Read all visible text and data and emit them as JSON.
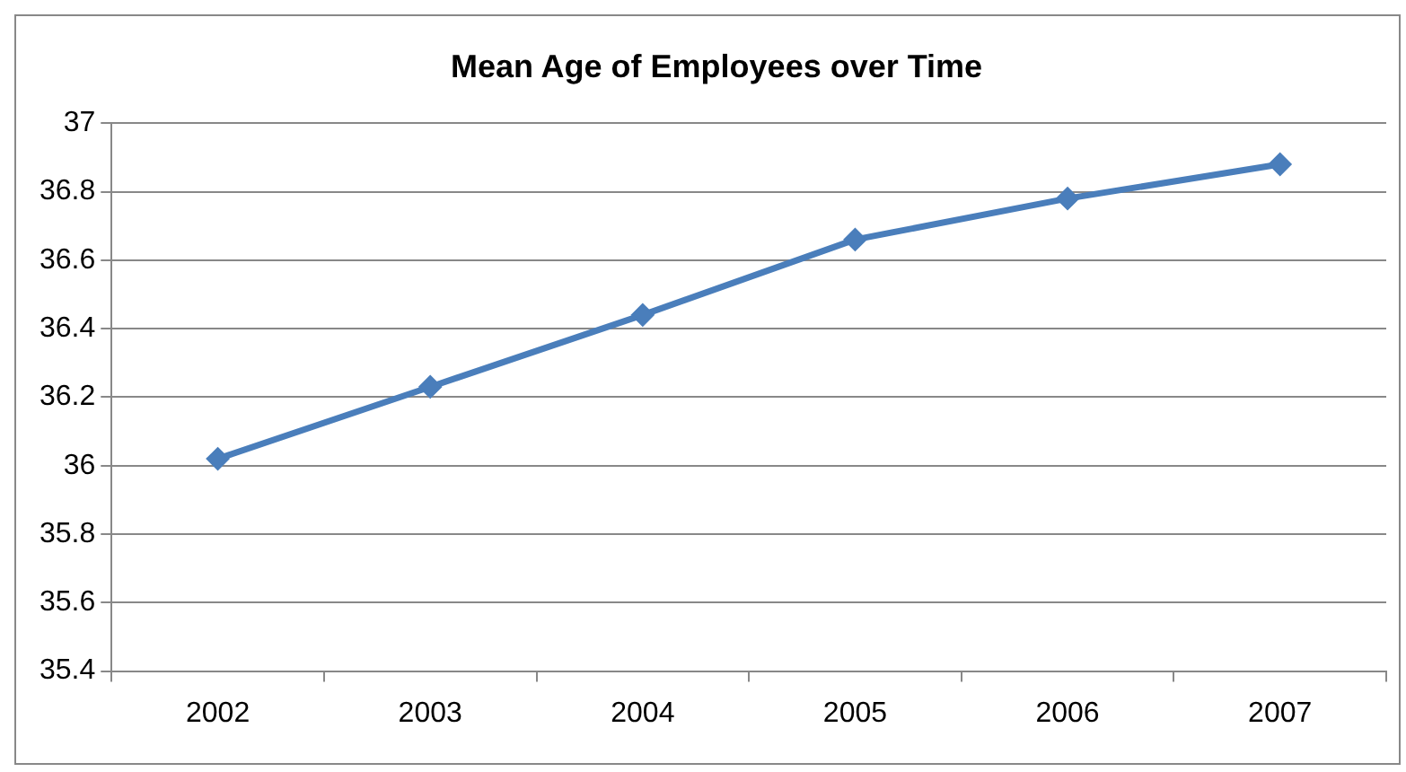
{
  "chart_data": {
    "type": "line",
    "title": "Mean Age of Employees over Time",
    "categories": [
      "2002",
      "2003",
      "2004",
      "2005",
      "2006",
      "2007"
    ],
    "series": [
      {
        "color": "#4a7ebb",
        "values": [
          36.02,
          36.23,
          36.44,
          36.66,
          36.78,
          36.88
        ]
      }
    ],
    "ylim": [
      35.4,
      37
    ],
    "yticks": [
      35.4,
      35.6,
      35.8,
      36,
      36.2,
      36.4,
      36.6,
      36.8,
      37
    ],
    "grid": "y",
    "legend": false,
    "marker": "diamond",
    "line_style": "solid"
  }
}
